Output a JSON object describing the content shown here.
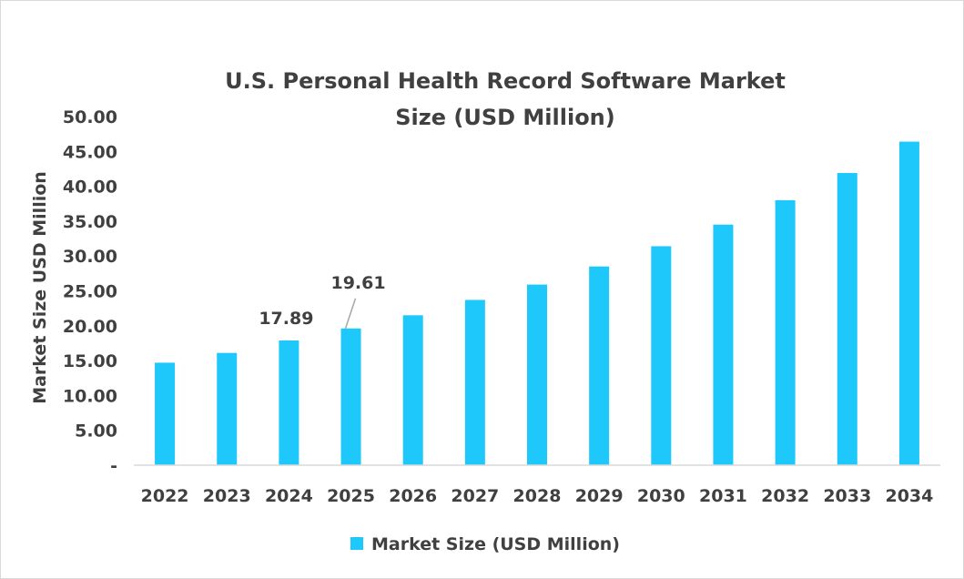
{
  "chart_data": {
    "type": "bar",
    "title": "U.S. Personal Health Record Software Market Size (USD Million)",
    "title_lines": [
      "U.S. Personal Health Record Software Market",
      "Size (USD Million)"
    ],
    "xlabel": "",
    "ylabel": "Market Size USD Million",
    "ylim": [
      0,
      50
    ],
    "yticks": [
      "-",
      "5.00",
      "10.00",
      "15.00",
      "20.00",
      "25.00",
      "30.00",
      "35.00",
      "40.00",
      "45.00",
      "50.00"
    ],
    "grid": false,
    "legend": {
      "position": "bottom",
      "entries": [
        "Market Size (USD Million)"
      ]
    },
    "categories": [
      "2022",
      "2023",
      "2024",
      "2025",
      "2026",
      "2027",
      "2028",
      "2029",
      "2030",
      "2031",
      "2032",
      "2033",
      "2034"
    ],
    "series": [
      {
        "name": "Market Size (USD Million)",
        "color": "#1ec8fa",
        "values": [
          14.7,
          16.1,
          17.89,
          19.61,
          21.5,
          23.7,
          25.9,
          28.5,
          31.4,
          34.5,
          38.0,
          41.9,
          46.4
        ]
      }
    ],
    "data_labels": [
      {
        "category": "2024",
        "text": "17.89"
      },
      {
        "category": "2025",
        "text": "19.61"
      }
    ]
  }
}
